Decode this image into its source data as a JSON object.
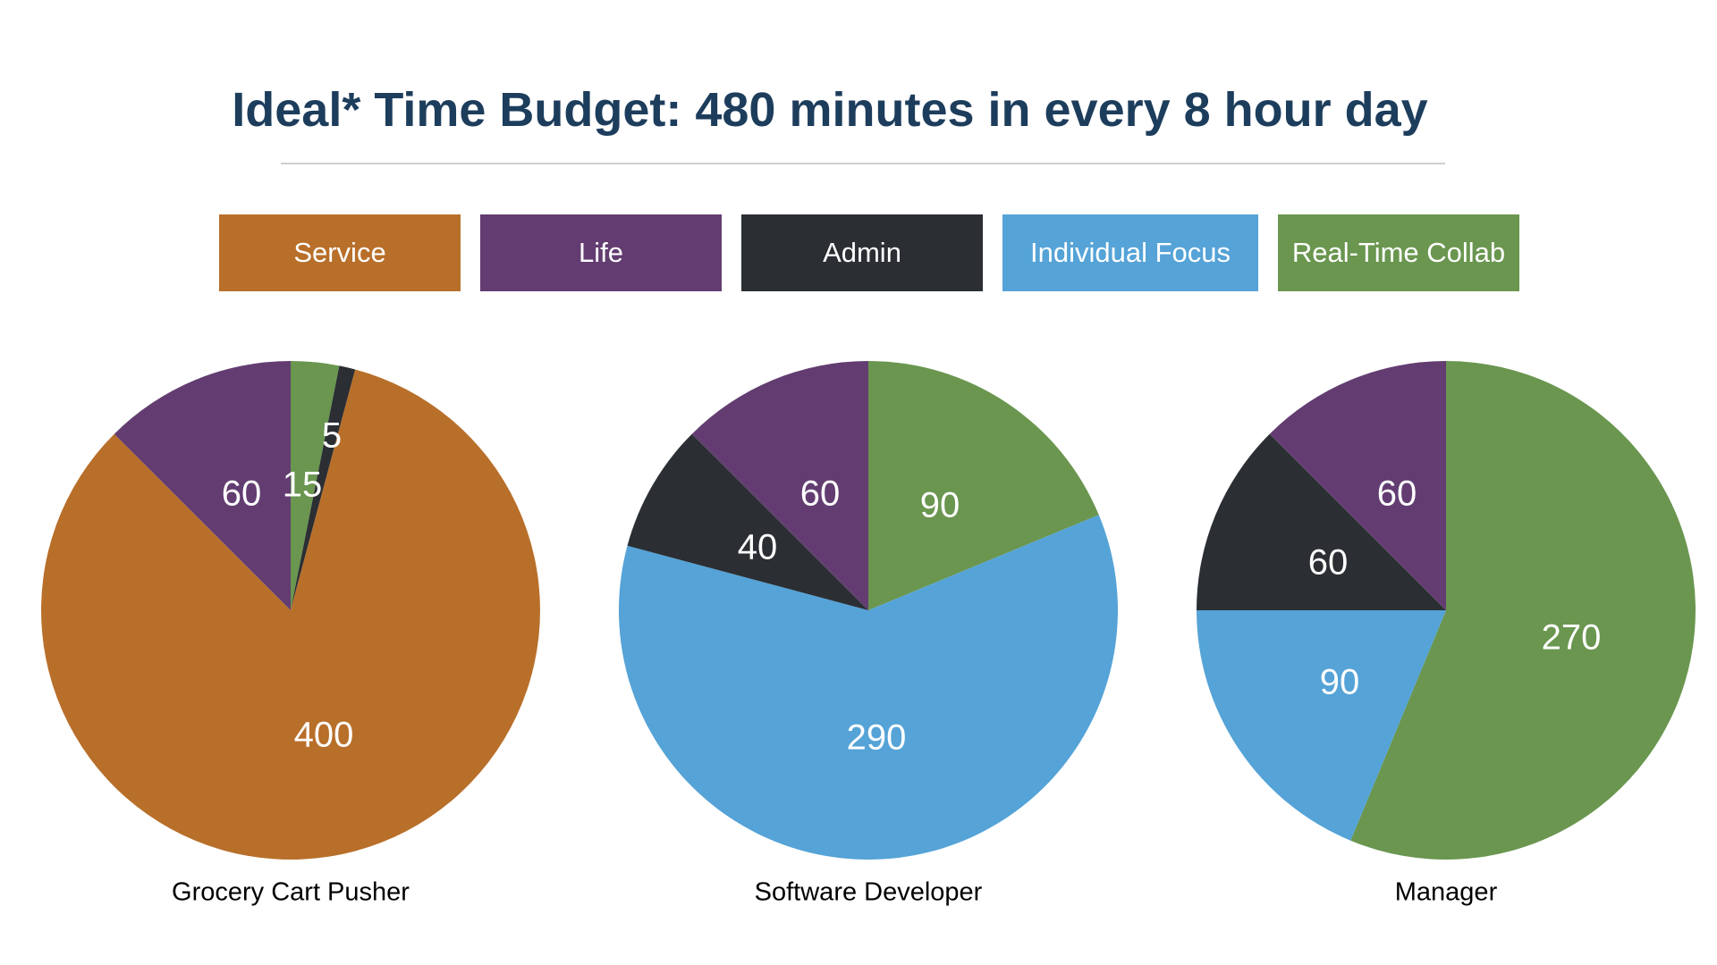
{
  "title": "Ideal* Time Budget: 480 minutes in every 8 hour day",
  "legend": [
    {
      "label": "Service",
      "color": "#b86f2a"
    },
    {
      "label": "Life",
      "color": "#633d71"
    },
    {
      "label": "Admin",
      "color": "#2b2e33"
    },
    {
      "label": "Individual Focus",
      "color": "#55a3d7"
    },
    {
      "label": "Real-Time Collab",
      "color": "#6a964f"
    }
  ],
  "chart_data": [
    {
      "type": "pie",
      "title": "Grocery Cart Pusher",
      "slices": [
        {
          "category": "Real-Time Collab",
          "value": 15,
          "label": "15"
        },
        {
          "category": "Admin",
          "value": 5,
          "label": "5"
        },
        {
          "category": "Service",
          "value": 400,
          "label": "400"
        },
        {
          "category": "Life",
          "value": 60,
          "label": "60"
        }
      ]
    },
    {
      "type": "pie",
      "title": "Software Developer",
      "slices": [
        {
          "category": "Real-Time Collab",
          "value": 90,
          "label": "90"
        },
        {
          "category": "Individual Focus",
          "value": 290,
          "label": "290"
        },
        {
          "category": "Admin",
          "value": 40,
          "label": "40"
        },
        {
          "category": "Life",
          "value": 60,
          "label": "60"
        }
      ]
    },
    {
      "type": "pie",
      "title": "Manager",
      "slices": [
        {
          "category": "Real-Time Collab",
          "value": 270,
          "label": "270"
        },
        {
          "category": "Individual Focus",
          "value": 90,
          "label": "90"
        },
        {
          "category": "Admin",
          "value": 60,
          "label": "60"
        },
        {
          "category": "Life",
          "value": 60,
          "label": "60"
        }
      ]
    }
  ]
}
